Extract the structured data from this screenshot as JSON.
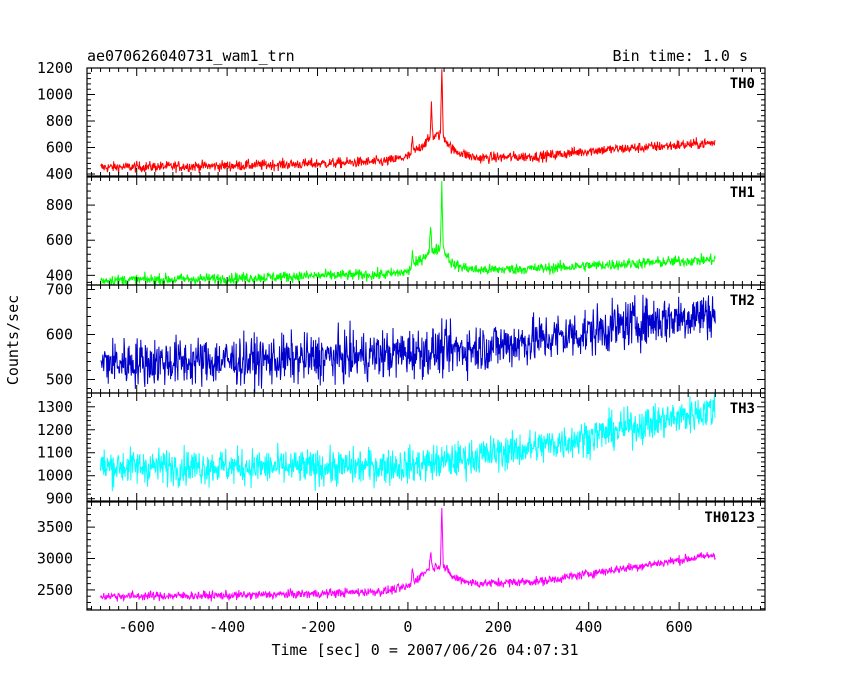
{
  "header": {
    "title": "ae070626040731_wam1_trn",
    "bin_time": "Bin time: 1.0 s"
  },
  "axes": {
    "xlabel": "Time [sec] 0 = 2007/06/26 04:07:31",
    "ylabel": "Counts/sec"
  },
  "chart_data": {
    "type": "line",
    "title": "ae070626040731_wam1_trn",
    "subtitle": "Bin time: 1.0 s",
    "xlabel": "Time [sec] 0 = 2007/06/26 04:07:31",
    "ylabel": "Counts/sec",
    "xlim": [
      -710,
      790
    ],
    "x_ticks": [
      -600,
      -400,
      -200,
      0,
      200,
      400,
      600
    ],
    "x_range_data": [
      -680,
      680
    ],
    "grid": false,
    "legend": "none",
    "panels": [
      {
        "name": "TH0",
        "color": "#ff0000",
        "ylim": [
          385,
          1200
        ],
        "y_ticks": [
          400,
          600,
          800,
          1000,
          1200
        ],
        "noise": 28,
        "baseline": [
          [
            -680,
            450
          ],
          [
            -400,
            462
          ],
          [
            -200,
            478
          ],
          [
            -50,
            495
          ],
          [
            0,
            530
          ],
          [
            40,
            640
          ],
          [
            55,
            680
          ],
          [
            75,
            700
          ],
          [
            100,
            580
          ],
          [
            150,
            520
          ],
          [
            300,
            535
          ],
          [
            400,
            575
          ],
          [
            680,
            635
          ]
        ],
        "peaks": [
          {
            "x": 75,
            "y": 1190
          },
          {
            "x": 52,
            "y": 940
          },
          {
            "x": 10,
            "y": 660
          }
        ]
      },
      {
        "name": "TH1",
        "color": "#00ff00",
        "ylim": [
          345,
          960
        ],
        "y_ticks": [
          400,
          600,
          800
        ],
        "noise": 22,
        "baseline": [
          [
            -680,
            372
          ],
          [
            -400,
            382
          ],
          [
            -200,
            398
          ],
          [
            -50,
            405
          ],
          [
            0,
            420
          ],
          [
            40,
            520
          ],
          [
            55,
            540
          ],
          [
            75,
            560
          ],
          [
            100,
            460
          ],
          [
            150,
            430
          ],
          [
            300,
            440
          ],
          [
            400,
            455
          ],
          [
            680,
            490
          ]
        ],
        "peaks": [
          {
            "x": 75,
            "y": 935
          },
          {
            "x": 50,
            "y": 680
          },
          {
            "x": 10,
            "y": 540
          }
        ]
      },
      {
        "name": "TH2",
        "color": "#0000cc",
        "ylim": [
          470,
          710
        ],
        "y_ticks": [
          500,
          600,
          700
        ],
        "noise": 38,
        "baseline": [
          [
            -680,
            537
          ],
          [
            -300,
            543
          ],
          [
            -100,
            552
          ],
          [
            0,
            560
          ],
          [
            100,
            565
          ],
          [
            200,
            575
          ],
          [
            300,
            590
          ],
          [
            400,
            605
          ],
          [
            500,
            625
          ],
          [
            680,
            648
          ]
        ],
        "peaks": []
      },
      {
        "name": "TH3",
        "color": "#00ffff",
        "ylim": [
          890,
          1360
        ],
        "y_ticks": [
          900,
          1000,
          1100,
          1200,
          1300
        ],
        "noise": 55,
        "baseline": [
          [
            -680,
            1040
          ],
          [
            -400,
            1040
          ],
          [
            -200,
            1035
          ],
          [
            0,
            1045
          ],
          [
            100,
            1065
          ],
          [
            200,
            1100
          ],
          [
            300,
            1130
          ],
          [
            400,
            1170
          ],
          [
            500,
            1215
          ],
          [
            600,
            1255
          ],
          [
            680,
            1290
          ]
        ],
        "peaks": []
      },
      {
        "name": "TH0123",
        "color": "#ff00ff",
        "ylim": [
          2180,
          3900
        ],
        "y_ticks": [
          2500,
          3000,
          3500
        ],
        "noise": 50,
        "baseline": [
          [
            -680,
            2400
          ],
          [
            -400,
            2410
          ],
          [
            -200,
            2440
          ],
          [
            -50,
            2480
          ],
          [
            0,
            2550
          ],
          [
            40,
            2800
          ],
          [
            55,
            2860
          ],
          [
            75,
            2900
          ],
          [
            100,
            2700
          ],
          [
            150,
            2600
          ],
          [
            300,
            2640
          ],
          [
            400,
            2760
          ],
          [
            680,
            3060
          ]
        ],
        "peaks": [
          {
            "x": 75,
            "y": 3850
          },
          {
            "x": 50,
            "y": 3150
          },
          {
            "x": 10,
            "y": 2850
          }
        ]
      }
    ]
  }
}
